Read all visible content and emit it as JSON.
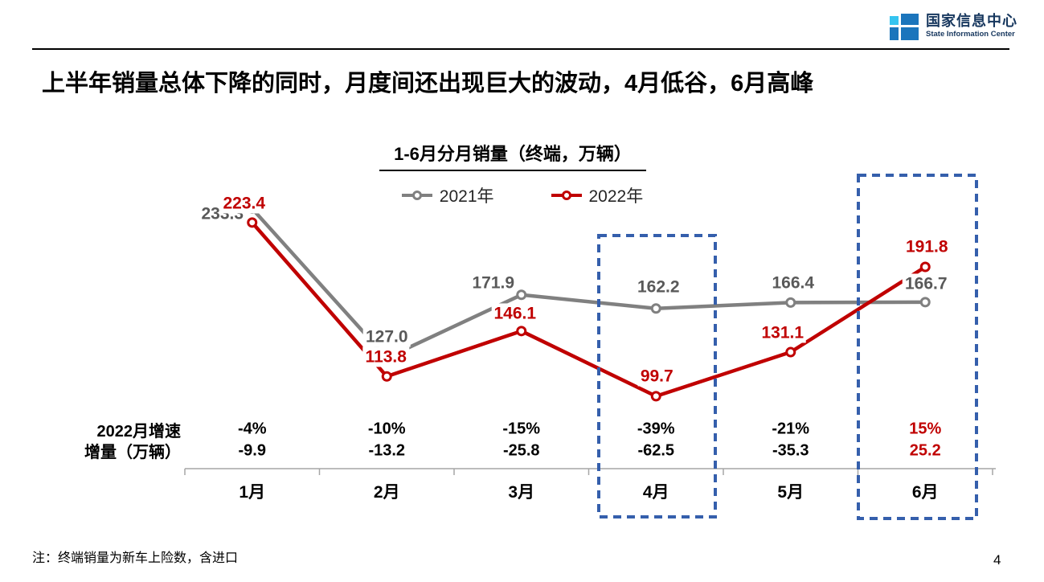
{
  "header": {
    "title": "上半年销量总体下降的同时，月度间还出现巨大的波动，4月低谷，6月高峰",
    "logo": {
      "name_cn": "国家信息中心",
      "name_en": "State Information Center"
    }
  },
  "page": {
    "note": "注：终端销量为新车上险数，含进口",
    "number": "4"
  },
  "chart_data": {
    "type": "line",
    "title": "1-6月分月销量（终端，万辆）",
    "categories": [
      "1月",
      "2月",
      "3月",
      "4月",
      "5月",
      "6月"
    ],
    "series": [
      {
        "name": "2021年",
        "color": "#808080",
        "values": [
          233.3,
          127.0,
          171.9,
          162.2,
          166.4,
          166.7
        ]
      },
      {
        "name": "2022年",
        "color": "#c00000",
        "values": [
          223.4,
          113.8,
          146.1,
          99.7,
          131.1,
          191.8
        ]
      }
    ],
    "stats": {
      "row_labels": [
        "2022月增速",
        "增量（万辆）"
      ],
      "growth_pct": [
        "-4%",
        "-10%",
        "-15%",
        "-39%",
        "-21%",
        "15%"
      ],
      "delta": [
        "-9.9",
        "-13.2",
        "-25.8",
        "-62.5",
        "-35.3",
        "25.2"
      ],
      "red_months": [
        "6月"
      ]
    },
    "highlight_months": [
      "4月",
      "6月"
    ],
    "highlight_color": "#355fac",
    "legend_position": "top",
    "grid": false,
    "ylim": [
      80,
      250
    ]
  }
}
